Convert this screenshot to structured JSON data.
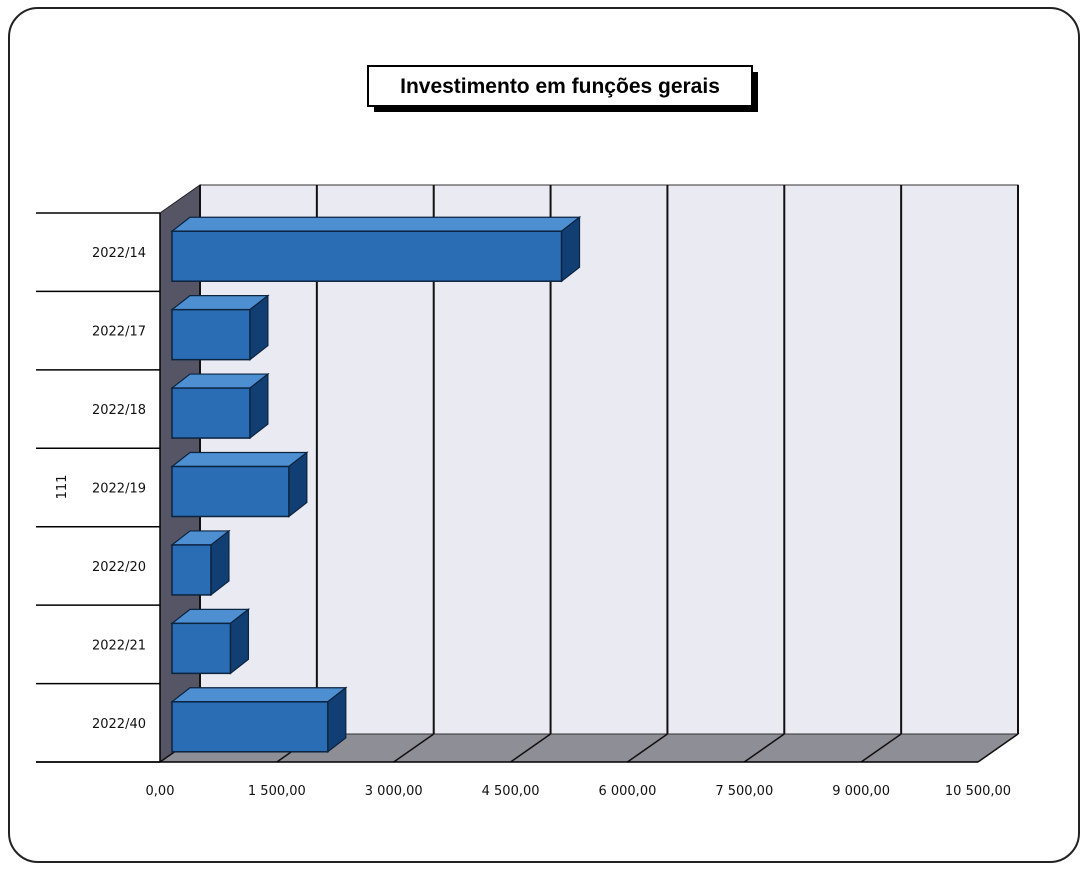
{
  "chart_data": {
    "type": "bar",
    "orientation": "horizontal",
    "style": "3d",
    "title": "Investimento em funções gerais",
    "group_label": "111",
    "categories": [
      "2022/14",
      "2022/17",
      "2022/18",
      "2022/19",
      "2022/20",
      "2022/21",
      "2022/40"
    ],
    "values": [
      5000,
      1000,
      1000,
      1500,
      500,
      750,
      2000
    ],
    "xlim": [
      0,
      10500
    ],
    "x_ticks": [
      0,
      1500,
      3000,
      4500,
      6000,
      7500,
      9000,
      10500
    ],
    "x_tick_labels": [
      "0,00",
      "1 500,00",
      "3 000,00",
      "4 500,00",
      "6 000,00",
      "7 500,00",
      "9 000,00",
      "10 500,00"
    ],
    "grid": true,
    "legend": "none",
    "colors": {
      "bar": "#2a6db4",
      "bar_top": "#4d8fd0",
      "bar_side": "#123f73",
      "wall": "#eaeaf2",
      "floor": "#8e8e96"
    }
  }
}
